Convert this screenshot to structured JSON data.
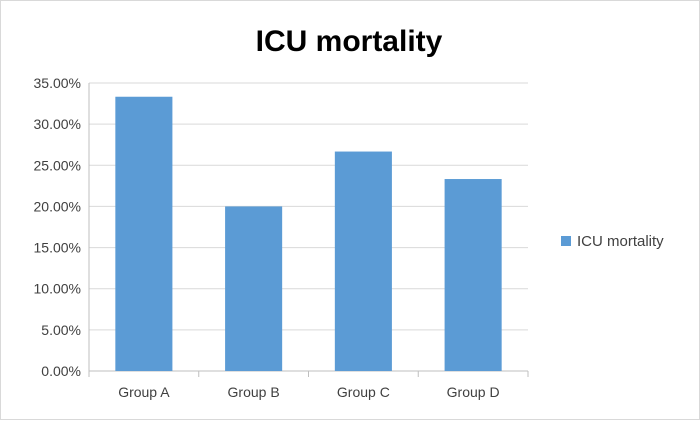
{
  "chart_data": {
    "type": "bar",
    "title": "ICU mortality",
    "xlabel": "",
    "ylabel": "",
    "categories": [
      "Group A",
      "Group B",
      "Group C",
      "Group D"
    ],
    "series": [
      {
        "name": "ICU mortality",
        "values": [
          33.33,
          20.0,
          26.67,
          23.33
        ],
        "color": "#5b9bd5"
      }
    ],
    "ylim": [
      0,
      35
    ],
    "y_ticks": [
      "0.00%",
      "5.00%",
      "10.00%",
      "15.00%",
      "20.00%",
      "25.00%",
      "30.00%",
      "35.00%"
    ],
    "y_tick_values": [
      0,
      5,
      10,
      15,
      20,
      25,
      30,
      35
    ],
    "grid": true,
    "legend_position": "right"
  }
}
